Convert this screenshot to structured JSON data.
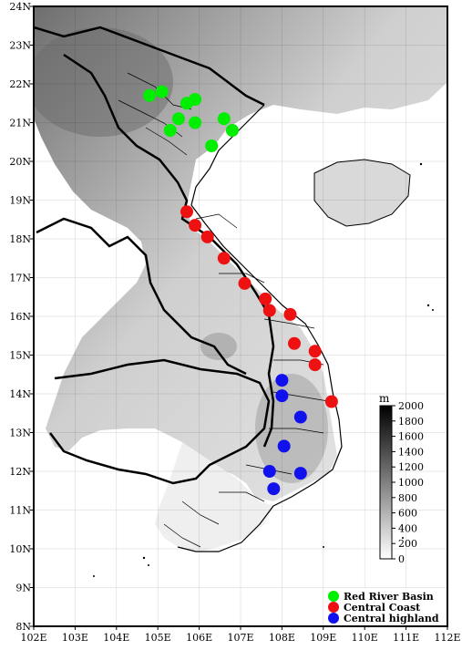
{
  "map": {
    "lon_range": [
      102,
      112
    ],
    "lat_range": [
      8,
      24
    ],
    "x_ticks": [
      "102E",
      "103E",
      "104E",
      "105E",
      "106E",
      "107E",
      "108E",
      "109E",
      "110E",
      "111E",
      "112E"
    ],
    "y_ticks": [
      "8N",
      "9N",
      "10N",
      "11N",
      "12N",
      "13N",
      "14N",
      "15N",
      "16N",
      "17N",
      "18N",
      "19N",
      "20N",
      "21N",
      "22N",
      "23N",
      "24N"
    ],
    "background": "grayscale elevation relief",
    "grid": true
  },
  "colorbar": {
    "unit": "m",
    "labels": [
      "0",
      "200",
      "400",
      "600",
      "800",
      "1000",
      "1200",
      "1400",
      "1600",
      "1800",
      "2000"
    ],
    "range": [
      0,
      2000
    ],
    "colors": {
      "low": "#ffffff",
      "high": "#000000"
    }
  },
  "legend": {
    "placement": "bottom-right",
    "items": [
      {
        "label": "Red River Basin",
        "color": "#00ee00"
      },
      {
        "label": "Central Coast",
        "color": "#ee1111"
      },
      {
        "label": "Central highland",
        "color": "#1111ee"
      }
    ]
  },
  "stations": [
    {
      "group": 0,
      "lon": 104.8,
      "lat": 21.7
    },
    {
      "group": 0,
      "lon": 105.1,
      "lat": 21.8
    },
    {
      "group": 0,
      "lon": 105.7,
      "lat": 21.5
    },
    {
      "group": 0,
      "lon": 105.9,
      "lat": 21.6
    },
    {
      "group": 0,
      "lon": 105.5,
      "lat": 21.1
    },
    {
      "group": 0,
      "lon": 105.9,
      "lat": 21.0
    },
    {
      "group": 0,
      "lon": 105.3,
      "lat": 20.8
    },
    {
      "group": 0,
      "lon": 106.6,
      "lat": 21.1
    },
    {
      "group": 0,
      "lon": 106.8,
      "lat": 20.8
    },
    {
      "group": 0,
      "lon": 106.3,
      "lat": 20.4
    },
    {
      "group": 1,
      "lon": 105.7,
      "lat": 18.7
    },
    {
      "group": 1,
      "lon": 105.9,
      "lat": 18.35
    },
    {
      "group": 1,
      "lon": 106.2,
      "lat": 18.05
    },
    {
      "group": 1,
      "lon": 106.6,
      "lat": 17.5
    },
    {
      "group": 1,
      "lon": 107.1,
      "lat": 16.85
    },
    {
      "group": 1,
      "lon": 107.6,
      "lat": 16.45
    },
    {
      "group": 1,
      "lon": 107.7,
      "lat": 16.15
    },
    {
      "group": 1,
      "lon": 108.2,
      "lat": 16.05
    },
    {
      "group": 1,
      "lon": 108.3,
      "lat": 15.3
    },
    {
      "group": 1,
      "lon": 108.8,
      "lat": 15.1
    },
    {
      "group": 1,
      "lon": 108.8,
      "lat": 14.75
    },
    {
      "group": 1,
      "lon": 109.2,
      "lat": 13.8
    },
    {
      "group": 2,
      "lon": 108.0,
      "lat": 14.35
    },
    {
      "group": 2,
      "lon": 108.0,
      "lat": 13.95
    },
    {
      "group": 2,
      "lon": 108.45,
      "lat": 13.4
    },
    {
      "group": 2,
      "lon": 108.05,
      "lat": 12.65
    },
    {
      "group": 2,
      "lon": 107.7,
      "lat": 12.0
    },
    {
      "group": 2,
      "lon": 108.45,
      "lat": 11.95
    },
    {
      "group": 2,
      "lon": 107.8,
      "lat": 11.55
    }
  ]
}
